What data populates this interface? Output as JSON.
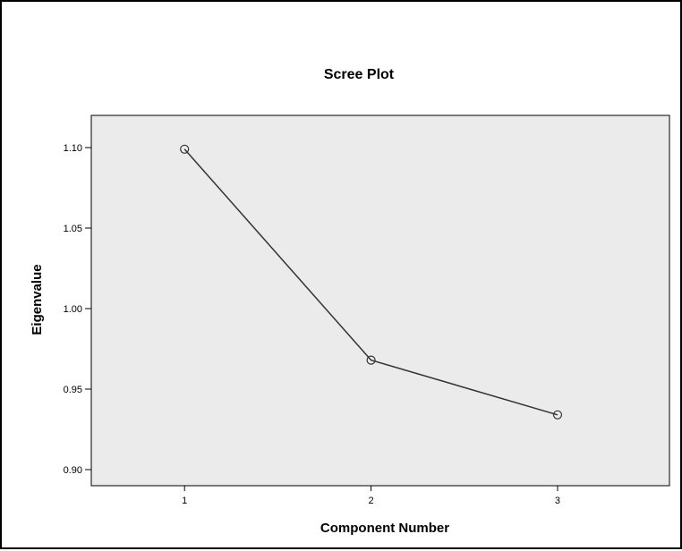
{
  "chart_data": {
    "type": "line",
    "title": "Scree Plot",
    "xlabel": "Component Number",
    "ylabel": "Eigenvalue",
    "x": [
      1,
      2,
      3
    ],
    "categories": [
      "1",
      "2",
      "3"
    ],
    "series": [
      {
        "values": [
          1.099,
          0.968,
          0.934
        ]
      }
    ],
    "xlim": [
      0.5,
      3.6
    ],
    "ylim": [
      0.89,
      1.12
    ],
    "yticks": [
      0.9,
      0.95,
      1.0,
      1.05,
      1.1
    ],
    "ytick_labels": [
      "0.90",
      "0.95",
      "1.00",
      "1.05",
      "1.10"
    ],
    "grid": false,
    "legend": "none",
    "marker": "open-circle",
    "colors": {
      "plot_background": "#ebebeb",
      "line": "#333333",
      "axes": "#000000"
    }
  }
}
